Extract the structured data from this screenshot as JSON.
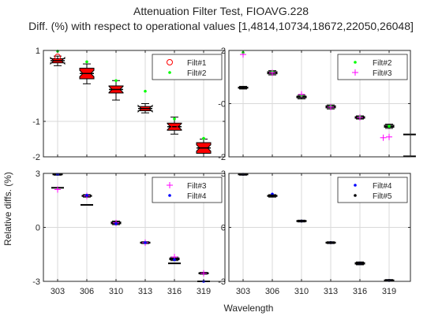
{
  "figure": {
    "title_line1": "Attenuation Filter Test, FIOAVG.228",
    "title_line2": "Diff. (%) with respect to operational values [1,4814,10734,18672,22050,26048]",
    "xlabel": "Wavelength",
    "ylabel": "Relative diffs. (%)"
  },
  "colors": {
    "frame": "#262626",
    "grid": "#d9d9d9",
    "box_fill_red": "#ff0000",
    "box_edge": "#000000",
    "green": "#00ff00",
    "magenta": "#ff00ff",
    "blue": "#0000ff",
    "red_open": "#ff0000",
    "black": "#000000"
  },
  "chart_data": [
    {
      "type": "box",
      "position": "top-left",
      "categories": [
        "303",
        "306",
        "310",
        "313",
        "316",
        "319"
      ],
      "ylim": [
        -2,
        1
      ],
      "yticks": [
        {
          "value": 1,
          "label": "1"
        },
        {
          "value": -1,
          "label": "-1"
        },
        {
          "value": -2,
          "label": "-2"
        }
      ],
      "show_x_ticklabels": false,
      "grid": true,
      "legend": {
        "placement": "top-right",
        "entries": [
          {
            "name": "Filt#1",
            "marker": "open-circle",
            "color": "#ff0000"
          },
          {
            "name": "Filt#2",
            "marker": "dot",
            "color": "#00ff00"
          }
        ]
      },
      "boxes": [
        {
          "median": 0.71,
          "q1": 0.65,
          "q3": 0.77,
          "whisker_low": 0.57,
          "whisker_high": 0.84,
          "filled": true
        },
        {
          "median": 0.35,
          "q1": 0.2,
          "q3": 0.5,
          "whisker_low": 0.06,
          "whisker_high": 0.62,
          "filled": true
        },
        {
          "median": -0.1,
          "q1": -0.2,
          "q3": 0.0,
          "whisker_low": -0.4,
          "whisker_high": 0.15,
          "filled": true
        },
        {
          "median": -0.64,
          "q1": -0.7,
          "q3": -0.58,
          "whisker_low": -0.76,
          "whisker_high": -0.5,
          "filled": true
        },
        {
          "median": -1.15,
          "q1": -1.25,
          "q3": -1.05,
          "whisker_low": -1.36,
          "whisker_high": -0.88,
          "filled": true
        },
        {
          "median": -1.75,
          "q1": -1.9,
          "q3": -1.6,
          "whisker_low": -2.0,
          "whisker_high": -1.5,
          "filled": true
        }
      ],
      "series": [
        {
          "name": "Filt#1",
          "values": [
            0.82,
            null,
            null,
            null,
            -1.15,
            null
          ]
        },
        {
          "name": "Filt#2",
          "values": [
            0.98,
            0.68,
            0.15,
            -0.15,
            -0.93,
            -1.48
          ]
        }
      ]
    },
    {
      "type": "box",
      "position": "top-right",
      "categories": [
        "303",
        "306",
        "310",
        "313",
        "316",
        "319"
      ],
      "ylim": [
        -2,
        2
      ],
      "yticks": [
        {
          "value": 2,
          "label": "2"
        },
        {
          "value": 0,
          "label": "-0"
        },
        {
          "value": -2,
          "label": "-2"
        }
      ],
      "show_x_ticklabels": false,
      "grid": true,
      "legend": {
        "placement": "top-right",
        "entries": [
          {
            "name": "Filt#2",
            "marker": "dot",
            "color": "#00ff00"
          },
          {
            "name": "Filt#3",
            "marker": "plus",
            "color": "#ff00ff"
          }
        ]
      },
      "boxes": [
        {
          "median": 0.6,
          "q1": 0.58,
          "q3": 0.62,
          "whisker_low": 0.55,
          "whisker_high": 0.65,
          "filled": false
        },
        {
          "median": 1.16,
          "q1": 1.12,
          "q3": 1.2,
          "whisker_low": 1.08,
          "whisker_high": 1.24,
          "filled": false
        },
        {
          "median": 0.25,
          "q1": 0.22,
          "q3": 0.28,
          "whisker_low": 0.18,
          "whisker_high": 0.32,
          "filled": false
        },
        {
          "median": -0.12,
          "q1": -0.16,
          "q3": -0.08,
          "whisker_low": -0.2,
          "whisker_high": -0.05,
          "filled": false
        },
        {
          "median": -0.52,
          "q1": -0.55,
          "q3": -0.49,
          "whisker_low": -0.58,
          "whisker_high": -0.46,
          "filled": false
        },
        {
          "median": -0.85,
          "q1": -0.89,
          "q3": -0.81,
          "whisker_low": -0.93,
          "whisker_high": -0.77,
          "filled": false
        }
      ],
      "series": [
        {
          "name": "Filt#2",
          "values": [
            1.92,
            1.2,
            0.3,
            -0.1,
            -0.5,
            -0.85
          ]
        },
        {
          "name": "Filt#3",
          "values": [
            1.85,
            1.16,
            0.35,
            -0.13,
            -0.52,
            -1.25
          ]
        }
      ],
      "extra_points": [
        {
          "x_index": 4.8,
          "value": -1.28,
          "marker": "plus-dot"
        },
        {
          "x_index": 5.7,
          "value": -1.16,
          "marker": "line"
        },
        {
          "x_index": 5.7,
          "value": -1.98,
          "marker": "line"
        }
      ]
    },
    {
      "type": "box",
      "position": "bottom-left",
      "categories": [
        "303",
        "306",
        "310",
        "313",
        "316",
        "319"
      ],
      "ylim": [
        -3,
        3
      ],
      "yticks": [
        {
          "value": 3,
          "label": "3"
        },
        {
          "value": 0,
          "label": "0"
        },
        {
          "value": -3,
          "label": "-3"
        }
      ],
      "show_x_ticklabels": true,
      "grid": true,
      "legend": {
        "placement": "top-right",
        "entries": [
          {
            "name": "Filt#3",
            "marker": "plus",
            "color": "#ff00ff"
          },
          {
            "name": "Filt#4",
            "marker": "dot",
            "color": "#0000ff"
          }
        ]
      },
      "boxes": [
        {
          "median": 2.95,
          "q1": 2.92,
          "q3": 2.98,
          "whisker_low": 2.9,
          "whisker_high": 3.0,
          "filled": false
        },
        {
          "median": 1.75,
          "q1": 1.72,
          "q3": 1.78,
          "whisker_low": 1.68,
          "whisker_high": 1.82,
          "filled": false
        },
        {
          "median": 0.25,
          "q1": 0.2,
          "q3": 0.3,
          "whisker_low": 0.15,
          "whisker_high": 0.35,
          "filled": false
        },
        {
          "median": -0.85,
          "q1": -0.88,
          "q3": -0.82,
          "whisker_low": -0.9,
          "whisker_high": -0.8,
          "filled": false
        },
        {
          "median": -1.75,
          "q1": -1.8,
          "q3": -1.7,
          "whisker_low": -1.85,
          "whisker_high": -1.65,
          "filled": false
        },
        {
          "median": -2.55,
          "q1": -2.58,
          "q3": -2.52,
          "whisker_low": -2.6,
          "whisker_high": -2.5,
          "filled": false
        }
      ],
      "series": [
        {
          "name": "Filt#3",
          "values": [
            2.1,
            1.75,
            0.25,
            -0.85,
            -1.65,
            -2.55
          ]
        },
        {
          "name": "Filt#4",
          "values": [
            2.95,
            1.78,
            0.2,
            -0.85,
            -1.8,
            -3.0
          ]
        }
      ],
      "extra_points": [
        {
          "x_index": 0,
          "value": 2.2,
          "marker": "line"
        },
        {
          "x_index": 1,
          "value": 1.25,
          "marker": "line"
        },
        {
          "x_index": 4,
          "value": -2.0,
          "marker": "line"
        },
        {
          "x_index": 5,
          "value": -3.0,
          "marker": "line"
        }
      ]
    },
    {
      "type": "box",
      "position": "bottom-right",
      "categories": [
        "303",
        "306",
        "310",
        "313",
        "316",
        "319"
      ],
      "ylim": [
        -3,
        3
      ],
      "yticks": [
        {
          "value": 3,
          "label": "3"
        },
        {
          "value": 0,
          "label": "0"
        },
        {
          "value": -3,
          "label": "-3"
        }
      ],
      "show_x_ticklabels": true,
      "grid": true,
      "legend": {
        "placement": "top-right",
        "entries": [
          {
            "name": "Filt#4",
            "marker": "dot",
            "color": "#0000ff"
          },
          {
            "name": "Filt#5",
            "marker": "dot",
            "color": "#000000"
          }
        ]
      },
      "boxes": [
        {
          "median": 2.95,
          "q1": 2.92,
          "q3": 2.98,
          "whisker_low": 2.9,
          "whisker_high": 3.0,
          "filled": false
        },
        {
          "median": 1.75,
          "q1": 1.72,
          "q3": 1.78,
          "whisker_low": 1.68,
          "whisker_high": 1.82,
          "filled": false
        },
        {
          "median": 0.35,
          "q1": 0.32,
          "q3": 0.38,
          "whisker_low": 0.3,
          "whisker_high": 0.4,
          "filled": false
        },
        {
          "median": -0.85,
          "q1": -0.88,
          "q3": -0.82,
          "whisker_low": -0.9,
          "whisker_high": -0.8,
          "filled": false
        },
        {
          "median": -2.0,
          "q1": -2.04,
          "q3": -1.96,
          "whisker_low": -2.08,
          "whisker_high": -1.92,
          "filled": false
        },
        {
          "median": -2.95,
          "q1": -2.98,
          "q3": -2.92,
          "whisker_low": -3.0,
          "whisker_high": -2.9,
          "filled": false
        }
      ],
      "series": [
        {
          "name": "Filt#4",
          "values": [
            2.95,
            1.85,
            0.35,
            -0.85,
            -2.0,
            -2.95
          ]
        },
        {
          "name": "Filt#5",
          "values": [
            2.95,
            1.75,
            0.35,
            -0.85,
            -2.0,
            -2.95
          ]
        }
      ]
    }
  ]
}
